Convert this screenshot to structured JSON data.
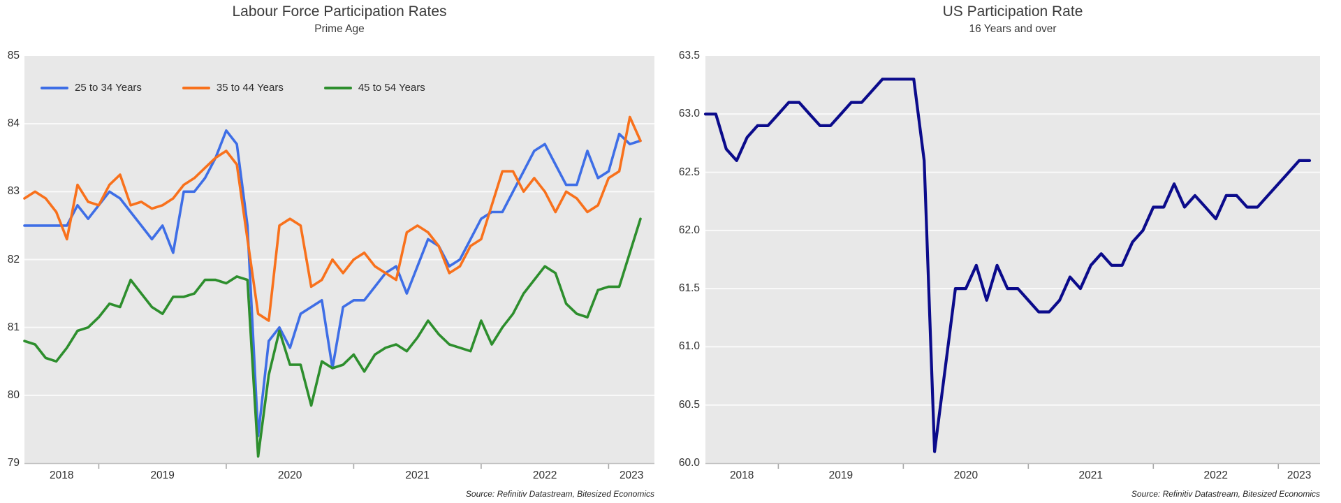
{
  "page": {
    "background": "#ffffff",
    "plot_background": "#e8e8e8",
    "gridline_color": "#fafafa",
    "axis_color": "#c2c2c2",
    "tick_color": "#a8a8a8"
  },
  "chart_data": [
    {
      "type": "line",
      "title": "Labour Force Participation Rates",
      "subtitle": "Prime Age",
      "source": "Source: Refinitiv Datastream, Bitesized Economics",
      "x_frequency": "monthly",
      "x_start": "2018-06",
      "x_end": "2023-04",
      "x_tick_labels": [
        "2018",
        "2019",
        "2020",
        "2021",
        "2022",
        "2023"
      ],
      "year_start_indices": [
        7,
        19,
        31,
        43,
        55
      ],
      "ylim": [
        79,
        85
      ],
      "y_tick_values": [
        85,
        84,
        83,
        82,
        81,
        80,
        79
      ],
      "y_tick_labels": [
        "85",
        "84",
        "83",
        "82",
        "81",
        "80",
        "79"
      ],
      "grid_values": [
        84,
        83,
        82,
        81,
        80
      ],
      "grid_on": true,
      "legend_position": "top-left",
      "series": [
        {
          "name": "25 to 34 Years",
          "color": "#3e6ee6",
          "values": [
            82.5,
            82.5,
            82.5,
            82.5,
            82.5,
            82.8,
            82.6,
            82.8,
            83.0,
            82.9,
            82.7,
            82.5,
            82.3,
            82.5,
            82.1,
            83.0,
            83.0,
            83.2,
            83.5,
            83.9,
            83.7,
            82.5,
            79.4,
            80.8,
            81.0,
            80.7,
            81.2,
            81.3,
            81.4,
            80.4,
            81.3,
            81.4,
            81.4,
            81.6,
            81.8,
            81.9,
            81.5,
            81.9,
            82.3,
            82.2,
            81.9,
            82.0,
            82.3,
            82.6,
            82.7,
            82.7,
            83.0,
            83.3,
            83.6,
            83.7,
            83.4,
            83.1,
            83.1,
            83.6,
            83.2,
            83.3,
            83.85,
            83.7,
            83.75
          ]
        },
        {
          "name": "35 to 44 Years",
          "color": "#f8711c",
          "values": [
            82.9,
            83.0,
            82.9,
            82.7,
            82.3,
            83.1,
            82.85,
            82.8,
            83.1,
            83.25,
            82.8,
            82.85,
            82.75,
            82.8,
            82.9,
            83.1,
            83.2,
            83.35,
            83.5,
            83.6,
            83.4,
            82.3,
            81.2,
            81.1,
            82.5,
            82.6,
            82.5,
            81.6,
            81.7,
            82.0,
            81.8,
            82.0,
            82.1,
            81.9,
            81.8,
            81.7,
            82.4,
            82.5,
            82.4,
            82.2,
            81.8,
            81.9,
            82.2,
            82.3,
            82.8,
            83.3,
            83.3,
            83.0,
            83.2,
            83.0,
            82.7,
            83.0,
            82.9,
            82.7,
            82.8,
            83.2,
            83.3,
            84.1,
            83.75
          ]
        },
        {
          "name": "45 to 54 Years",
          "color": "#2d8e2d",
          "values": [
            80.8,
            80.75,
            80.55,
            80.5,
            80.7,
            80.95,
            81.0,
            81.15,
            81.35,
            81.3,
            81.7,
            81.5,
            81.3,
            81.2,
            81.45,
            81.45,
            81.5,
            81.7,
            81.7,
            81.65,
            81.75,
            81.7,
            79.1,
            80.3,
            80.95,
            80.45,
            80.45,
            79.85,
            80.5,
            80.4,
            80.45,
            80.6,
            80.35,
            80.6,
            80.7,
            80.75,
            80.65,
            80.85,
            81.1,
            80.9,
            80.75,
            80.7,
            80.65,
            81.1,
            80.75,
            81.0,
            81.2,
            81.5,
            81.7,
            81.9,
            81.8,
            81.35,
            81.2,
            81.15,
            81.55,
            81.6,
            81.6,
            82.1,
            82.6
          ]
        }
      ]
    },
    {
      "type": "line",
      "title": "US Participation Rate",
      "subtitle": "16 Years and over",
      "source": "Source: Refinitiv Datastream, Bitesized Economics",
      "x_frequency": "monthly",
      "x_start": "2018-06",
      "x_end": "2023-04",
      "x_tick_labels": [
        "2018",
        "2019",
        "2020",
        "2021",
        "2022",
        "2023"
      ],
      "year_start_indices": [
        7,
        19,
        31,
        43,
        55
      ],
      "ylim": [
        60,
        63.5
      ],
      "y_tick_values": [
        63.5,
        63.0,
        62.5,
        62.0,
        61.5,
        61.0,
        60.5,
        60.0
      ],
      "y_tick_labels": [
        "63.5",
        "63.0",
        "62.5",
        "62.0",
        "61.5",
        "61.0",
        "60.5",
        "60.0"
      ],
      "grid_values": [
        63.0,
        62.5,
        62.0,
        61.5,
        61.0,
        60.5
      ],
      "grid_on": true,
      "legend_position": "none",
      "series": [
        {
          "name": "US Participation Rate 16 Years and over",
          "color": "#0b0b8b",
          "values": [
            63.0,
            63.0,
            62.7,
            62.6,
            62.8,
            62.9,
            62.9,
            63.0,
            63.1,
            63.1,
            63.0,
            62.9,
            62.9,
            63.0,
            63.1,
            63.1,
            63.2,
            63.3,
            63.3,
            63.3,
            63.3,
            62.6,
            60.1,
            60.8,
            61.5,
            61.5,
            61.7,
            61.4,
            61.7,
            61.5,
            61.5,
            61.4,
            61.3,
            61.3,
            61.4,
            61.6,
            61.5,
            61.7,
            61.8,
            61.7,
            61.7,
            61.9,
            62.0,
            62.2,
            62.2,
            62.4,
            62.2,
            62.3,
            62.2,
            62.1,
            62.3,
            62.3,
            62.2,
            62.2,
            62.3,
            62.4,
            62.5,
            62.6,
            62.6
          ]
        }
      ]
    }
  ]
}
